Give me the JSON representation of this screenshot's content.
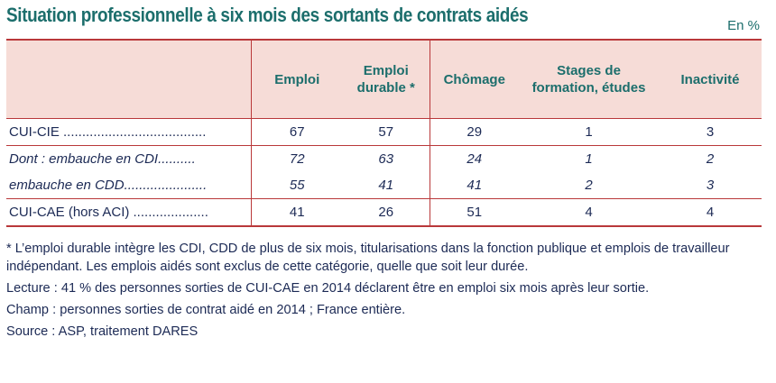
{
  "title": "Situation professionnelle à six mois des sortants de contrats aidés",
  "unit": "En %",
  "columns": [
    "Emploi",
    "Emploi durable *",
    "Chômage",
    "Stages de formation, études",
    "Inactivité"
  ],
  "rows": [
    {
      "label": "CUI-CIE ......................................",
      "values": [
        "67",
        "57",
        "29",
        "1",
        "3"
      ]
    },
    {
      "label": "Dont : embauche en CDI..........",
      "values": [
        "72",
        "63",
        "24",
        "1",
        "2"
      ]
    },
    {
      "label": "embauche en CDD......................",
      "values": [
        "55",
        "41",
        "41",
        "2",
        "3"
      ]
    },
    {
      "label": "CUI-CAE (hors ACI) ....................",
      "values": [
        "41",
        "26",
        "51",
        "4",
        "4"
      ]
    }
  ],
  "notes": [
    "* L’emploi durable intègre les CDI, CDD de plus de six mois, titularisations dans la fonction publique et emplois de travailleur indépendant. Les emplois aidés sont exclus de cette catégorie, quelle que soit leur durée.",
    "Lecture : 41 % des personnes sorties de CUI-CAE en 2014 déclarent être en emploi six mois après leur sortie.",
    "Champ : personnes sorties de contrat aidé en 2014 ; France entière.",
    "Source : ASP, traitement DARES"
  ]
}
